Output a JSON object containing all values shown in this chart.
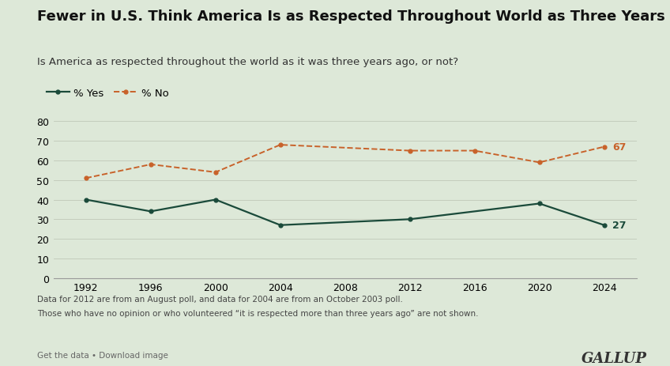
{
  "title": "Fewer in U.S. Think America Is as Respected Throughout World as Three Years Ago",
  "subtitle": "Is America as respected throughout the world as it was three years ago, or not?",
  "footnote1": "Data for 2012 are from an August poll, and data for 2004 are from an October 2003 poll.",
  "footnote2": "Those who have no opinion or who volunteered “it is respected more than three years ago” are not shown.",
  "footer_left": "Get the data • Download image",
  "footer_right": "GALLUP",
  "yes_years": [
    1992,
    1996,
    2000,
    2004,
    2012,
    2020,
    2024
  ],
  "yes_values": [
    40,
    34,
    40,
    27,
    30,
    38,
    27
  ],
  "no_years": [
    1992,
    1996,
    2000,
    2004,
    2012,
    2016,
    2020,
    2024
  ],
  "no_values": [
    51,
    58,
    54,
    68,
    65,
    65,
    59,
    67
  ],
  "yes_color": "#1a4a3a",
  "no_color": "#c8622a",
  "bg_color": "#dde8d8",
  "yes_label": "% Yes",
  "no_label": "% No",
  "ylim": [
    0,
    88
  ],
  "yticks": [
    0,
    10,
    20,
    30,
    40,
    50,
    60,
    70,
    80
  ],
  "xticks": [
    1992,
    1996,
    2000,
    2004,
    2008,
    2012,
    2016,
    2020,
    2024
  ],
  "xlim": [
    1990,
    2026
  ],
  "title_fontsize": 13.0,
  "subtitle_fontsize": 9.5,
  "legend_fontsize": 9.5,
  "tick_fontsize": 9.0,
  "annotation_yes": "27",
  "annotation_no": "67",
  "annotation_yes_year": 2024,
  "annotation_yes_val": 27,
  "annotation_no_year": 2024,
  "annotation_no_val": 67
}
